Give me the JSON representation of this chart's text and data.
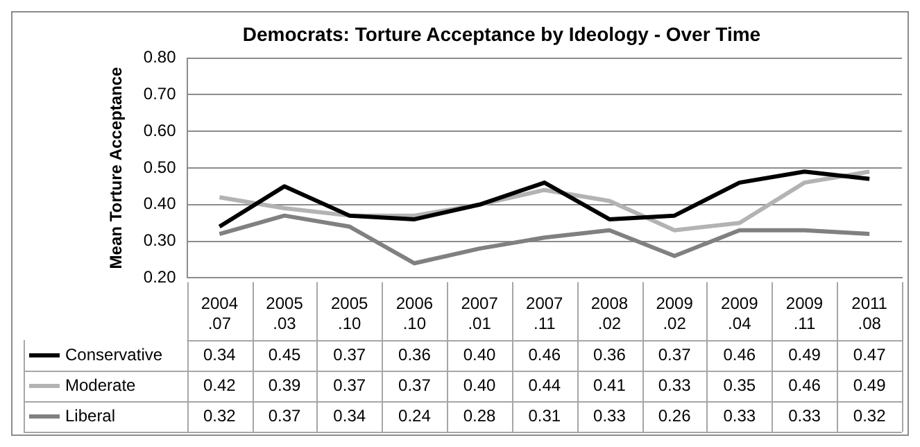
{
  "chart_data": {
    "type": "line",
    "title": "Democrats: Torture Acceptance by Ideology - Over Time",
    "ylabel": "Mean Torture Acceptance",
    "categories": [
      "2004.07",
      "2005.03",
      "2005.10",
      "2006.10",
      "2007.01",
      "2007.11",
      "2008.02",
      "2009.02",
      "2009.04",
      "2009.11",
      "2011.08"
    ],
    "series": [
      {
        "name": "Conservative",
        "color": "#000000",
        "values": [
          0.34,
          0.45,
          0.37,
          0.36,
          0.4,
          0.46,
          0.36,
          0.37,
          0.46,
          0.49,
          0.47
        ],
        "value_labels": [
          "0.34",
          "0.45",
          "0.37",
          "0.36",
          "0.40",
          "0.46",
          "0.36",
          "0.37",
          "0.46",
          "0.49",
          "0.47"
        ]
      },
      {
        "name": "Moderate",
        "color": "#b3b3b3",
        "values": [
          0.42,
          0.39,
          0.37,
          0.37,
          0.4,
          0.44,
          0.41,
          0.33,
          0.35,
          0.46,
          0.49
        ],
        "value_labels": [
          "0.42",
          "0.39",
          "0.37",
          "0.37",
          "0.40",
          "0.44",
          "0.41",
          "0.33",
          "0.35",
          "0.46",
          "0.49"
        ]
      },
      {
        "name": "Liberal",
        "color": "#808080",
        "values": [
          0.32,
          0.37,
          0.34,
          0.24,
          0.28,
          0.31,
          0.33,
          0.26,
          0.33,
          0.33,
          0.32
        ],
        "value_labels": [
          "0.32",
          "0.37",
          "0.34",
          "0.24",
          "0.28",
          "0.31",
          "0.33",
          "0.26",
          "0.33",
          "0.33",
          "0.32"
        ]
      }
    ],
    "ylim": [
      0.2,
      0.8
    ],
    "yticks": [
      {
        "value": 0.2,
        "label": "0.20"
      },
      {
        "value": 0.3,
        "label": "0.30"
      },
      {
        "value": 0.4,
        "label": "0.40"
      },
      {
        "value": 0.5,
        "label": "0.50"
      },
      {
        "value": 0.6,
        "label": "0.60"
      },
      {
        "value": 0.7,
        "label": "0.70"
      },
      {
        "value": 0.8,
        "label": "0.80"
      }
    ],
    "grid": "y",
    "legend": "bottom",
    "marker": "none",
    "line_style": "solid"
  }
}
